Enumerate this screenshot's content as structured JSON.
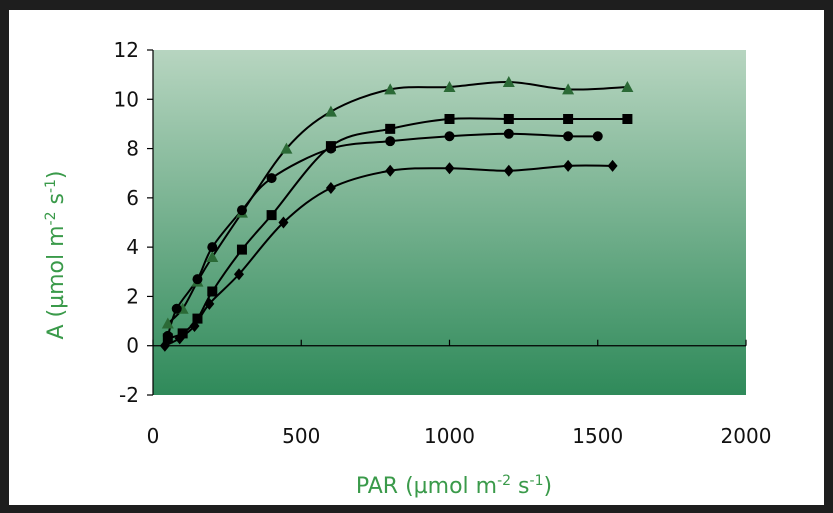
{
  "chart_data": {
    "type": "line",
    "title": "",
    "xlabel": {
      "main": "PAR (µmol m",
      "sup1": "-2",
      "mid": " s",
      "sup2": "-1",
      "end": ")"
    },
    "ylabel": {
      "main": "A (µmol m",
      "sup1": "-2",
      "mid": " s",
      "sup2": "-1",
      "end": ")"
    },
    "xlim": [
      0,
      2000
    ],
    "ylim": [
      -2,
      12
    ],
    "xticks": [
      "0",
      "500",
      "1000",
      "1500",
      "2000"
    ],
    "yticks": [
      "-2",
      "0",
      "2",
      "4",
      "6",
      "8",
      "10",
      "12"
    ],
    "grid": false,
    "legend": "none",
    "colors": {
      "axis_label": "#3a9a4a",
      "plot_top": "#b7d5c0",
      "plot_bottom": "#2f8a5a",
      "series": "#000000",
      "triangle_series": "#2b6a36"
    },
    "series": [
      {
        "marker": "triangle",
        "x": [
          50,
          100,
          150,
          200,
          300,
          450,
          600,
          800,
          1000,
          1200,
          1400,
          1600
        ],
        "y": [
          0.9,
          1.5,
          2.6,
          3.6,
          5.4,
          8.0,
          9.5,
          10.4,
          10.5,
          10.7,
          10.4,
          10.5
        ]
      },
      {
        "marker": "square",
        "x": [
          50,
          100,
          150,
          200,
          300,
          400,
          600,
          800,
          1000,
          1200,
          1400,
          1600
        ],
        "y": [
          0.3,
          0.5,
          1.1,
          2.2,
          3.9,
          5.3,
          8.1,
          8.8,
          9.2,
          9.2,
          9.2,
          9.2
        ]
      },
      {
        "marker": "circle",
        "x": [
          50,
          80,
          150,
          200,
          300,
          400,
          600,
          800,
          1000,
          1200,
          1400,
          1500
        ],
        "y": [
          0.4,
          1.5,
          2.7,
          4.0,
          5.5,
          6.8,
          8.0,
          8.3,
          8.5,
          8.6,
          8.5,
          8.5
        ]
      },
      {
        "marker": "diamond",
        "x": [
          40,
          90,
          140,
          190,
          290,
          440,
          600,
          800,
          1000,
          1200,
          1400,
          1550
        ],
        "y": [
          0.0,
          0.3,
          0.8,
          1.7,
          2.9,
          5.0,
          6.4,
          7.1,
          7.2,
          7.1,
          7.3,
          7.3
        ]
      }
    ]
  }
}
